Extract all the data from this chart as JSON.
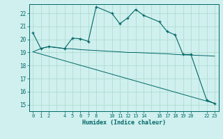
{
  "xlabel": "Humidex (Indice chaleur)",
  "bg_color": "#cff0ee",
  "grid_color": "#aad8cc",
  "line_color": "#006666",
  "ylim": [
    14.5,
    22.7
  ],
  "xlim": [
    -0.5,
    23.5
  ],
  "yticks": [
    15,
    16,
    17,
    18,
    19,
    20,
    21,
    22
  ],
  "xticks": [
    0,
    1,
    2,
    4,
    5,
    6,
    7,
    8,
    10,
    11,
    12,
    13,
    14,
    16,
    17,
    18,
    19,
    20,
    22,
    23
  ],
  "xtick_labels": [
    "0",
    "1",
    "2",
    "4",
    "5",
    "6",
    "7",
    "8",
    "10",
    "11",
    "12",
    "13",
    "14",
    "16",
    "17",
    "18",
    "19",
    "20",
    "22",
    "23"
  ],
  "series1_x": [
    0,
    1,
    2,
    4,
    5,
    6,
    7,
    8,
    10,
    11,
    12,
    13,
    14,
    16,
    17,
    18,
    19,
    20,
    22,
    23
  ],
  "series1_y": [
    20.5,
    19.3,
    19.45,
    19.3,
    20.1,
    20.05,
    19.85,
    22.5,
    22.0,
    21.2,
    21.65,
    22.3,
    21.85,
    21.35,
    20.6,
    20.35,
    18.85,
    18.85,
    15.35,
    15.1
  ],
  "series2_x": [
    0,
    1,
    2,
    4,
    5,
    6,
    7,
    8,
    10,
    11,
    12,
    13,
    14,
    16,
    17,
    18,
    19,
    20,
    22,
    23
  ],
  "series2_y": [
    19.05,
    19.3,
    19.45,
    19.3,
    19.28,
    19.22,
    19.18,
    19.15,
    19.08,
    19.05,
    19.0,
    19.0,
    18.97,
    18.92,
    18.9,
    18.85,
    18.82,
    18.8,
    18.75,
    18.72
  ],
  "series3_x": [
    0,
    23
  ],
  "series3_y": [
    19.05,
    15.1
  ]
}
